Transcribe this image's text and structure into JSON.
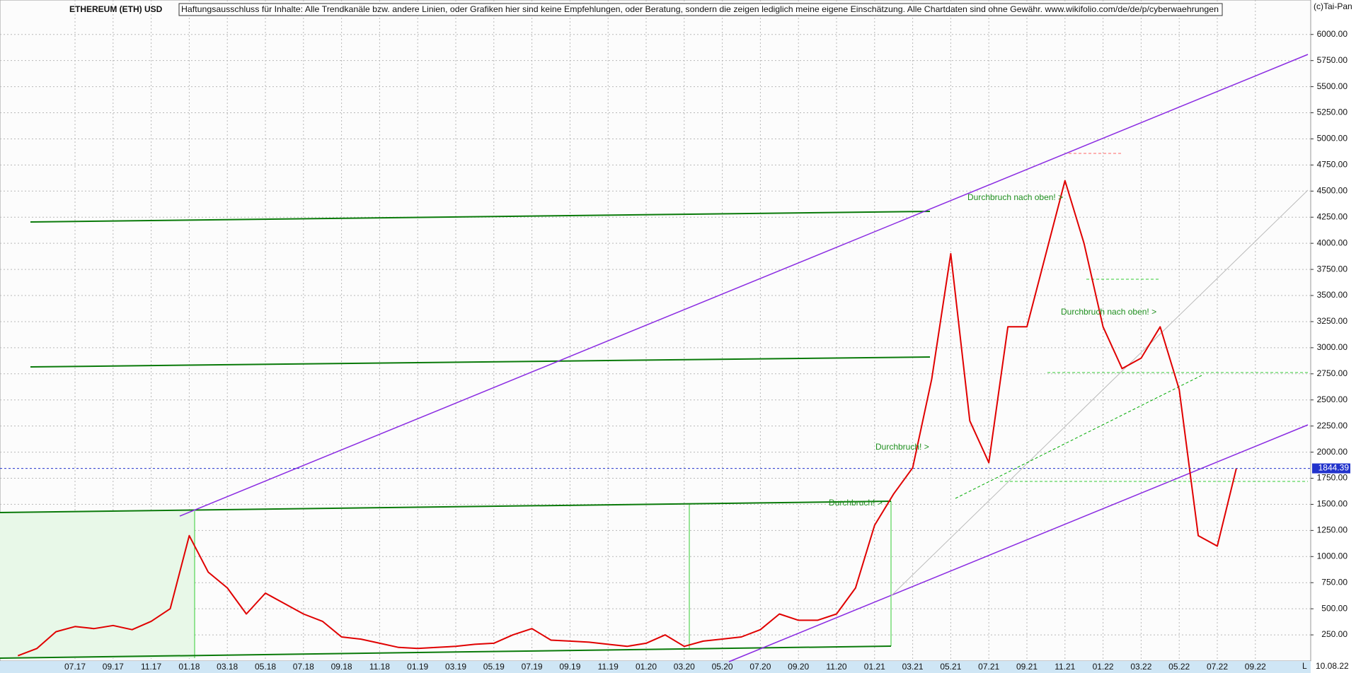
{
  "header": {
    "source": "(c)Tai-Pan",
    "disclaimer": "Haftungsausschluss für Inhalte: Alle Trendkanäle bzw. andere Linien, oder Grafiken hier sind keine Empfehlungen, oder Beratung, sondern die zeigen lediglich meine eigene Einschätzung. Alle Chartdaten sind ohne Gewähr.  www.wikifolio.com/de/de/p/cyberwaehrungen",
    "corner_mark": "L"
  },
  "chart_data": {
    "type": "line",
    "title": "ETHEREUM (ETH) USD",
    "categories": [
      null,
      null,
      null,
      "07.17",
      null,
      "09.17",
      null,
      "11.17",
      null,
      "01.18",
      null,
      "03.18",
      null,
      "05.18",
      null,
      "07.18",
      null,
      "09.18",
      null,
      "11.18",
      null,
      "01.19",
      null,
      "03.19",
      null,
      "05.19",
      null,
      "07.19",
      null,
      "09.19",
      null,
      "11.19",
      null,
      "01.20",
      null,
      "03.20",
      null,
      "05.20",
      null,
      "07.20",
      null,
      "09.20",
      null,
      "11.20",
      null,
      "01.21",
      null,
      "03.21",
      null,
      "05.21",
      null,
      "07.21",
      null,
      "09.21",
      null,
      "11.21",
      null,
      "01.22",
      null,
      "03.22",
      null,
      "05.22",
      null,
      "07.22",
      null,
      "09.22"
    ],
    "series": [
      {
        "name": "ETHEREUM (ETH) USD",
        "color": "#e00000",
        "values": [
          50,
          120,
          280,
          330,
          310,
          340,
          300,
          380,
          500,
          1200,
          850,
          700,
          450,
          650,
          550,
          450,
          380,
          230,
          210,
          170,
          130,
          120,
          130,
          140,
          160,
          170,
          250,
          310,
          200,
          190,
          180,
          160,
          140,
          170,
          250,
          140,
          190,
          210,
          230,
          300,
          450,
          390,
          390,
          450,
          700,
          1300,
          1600,
          1850,
          2700,
          3900,
          2300,
          1900,
          3200,
          3200,
          3900,
          4600,
          4000,
          3200,
          2800,
          2900,
          3200,
          2600,
          1200,
          1100,
          1844.39,
          null
        ]
      }
    ],
    "current_price": 1844.39,
    "date_label": "10.08.22",
    "annotations": [
      "Durchbruch nach oben! >",
      "Durchbruch nach oben! >",
      "Durchbruch! >",
      "Durchbruch! >"
    ],
    "ylim": [
      0,
      6330
    ],
    "yticks": [
      {
        "value": 250,
        "label": "250.00"
      },
      {
        "value": 500,
        "label": "500.00"
      },
      {
        "value": 750,
        "label": "750.00"
      },
      {
        "value": 1000,
        "label": "1000.00"
      },
      {
        "value": 1250,
        "label": "1250.00"
      },
      {
        "value": 1500,
        "label": "1500.00"
      },
      {
        "value": 1750,
        "label": "1750.00"
      },
      {
        "value": 2000,
        "label": "2000.00"
      },
      {
        "value": 2250,
        "label": "2250.00"
      },
      {
        "value": 2500,
        "label": "2500.00"
      },
      {
        "value": 2750,
        "label": "2750.00"
      },
      {
        "value": 3000,
        "label": "3000.00"
      },
      {
        "value": 3250,
        "label": "3250.00"
      },
      {
        "value": 3500,
        "label": "3500.00"
      },
      {
        "value": 3750,
        "label": "3750.00"
      },
      {
        "value": 4000,
        "label": "4000.00"
      },
      {
        "value": 4250,
        "label": "4250.00"
      },
      {
        "value": 4500,
        "label": "4500.00"
      },
      {
        "value": 4750,
        "label": "4750.00"
      },
      {
        "value": 5000,
        "label": "5000.00"
      },
      {
        "value": 5250,
        "label": "5250.00"
      },
      {
        "value": 5500,
        "label": "5500.00"
      },
      {
        "value": 5750,
        "label": "5750.00"
      },
      {
        "value": 6000,
        "label": "6000.00"
      }
    ],
    "grid": true
  }
}
